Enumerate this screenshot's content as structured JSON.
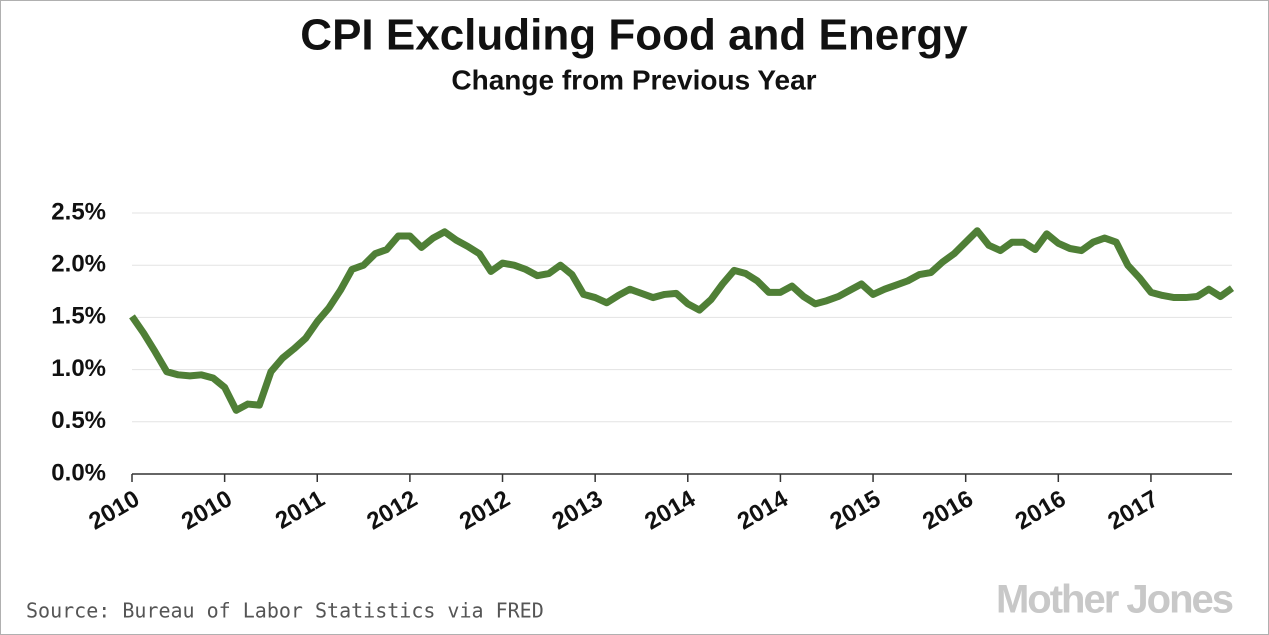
{
  "chart_data": {
    "type": "line",
    "title": "CPI Excluding Food and Energy",
    "subtitle": "Change from Previous Year",
    "source": "Source: Bureau of Labor Statistics via FRED",
    "credit": "Mother Jones",
    "categories": [
      "2010",
      null,
      null,
      null,
      null,
      null,
      null,
      null,
      "2010",
      null,
      null,
      null,
      null,
      null,
      null,
      null,
      "2011",
      null,
      null,
      null,
      null,
      null,
      null,
      null,
      "2012",
      null,
      null,
      null,
      null,
      null,
      null,
      null,
      "2012",
      null,
      null,
      null,
      null,
      null,
      null,
      null,
      "2013",
      null,
      null,
      null,
      null,
      null,
      null,
      null,
      "2014",
      null,
      null,
      null,
      null,
      null,
      null,
      null,
      "2014",
      null,
      null,
      null,
      null,
      null,
      null,
      null,
      "2015",
      null,
      null,
      null,
      null,
      null,
      null,
      null,
      "2016",
      null,
      null,
      null,
      null,
      null,
      null,
      null,
      "2016",
      null,
      null,
      null,
      null,
      null,
      null,
      null,
      "2017",
      null,
      null,
      null,
      null,
      null,
      null,
      null
    ],
    "values": [
      1.51,
      1.35,
      1.17,
      0.98,
      0.95,
      0.94,
      0.95,
      0.92,
      0.83,
      0.61,
      0.67,
      0.66,
      0.98,
      1.11,
      1.2,
      1.3,
      1.46,
      1.59,
      1.76,
      1.96,
      2.0,
      2.11,
      2.15,
      2.28,
      2.28,
      2.17,
      2.26,
      2.32,
      2.24,
      2.18,
      2.11,
      1.94,
      2.02,
      2.0,
      1.96,
      1.9,
      1.92,
      2.0,
      1.91,
      1.72,
      1.69,
      1.64,
      1.71,
      1.77,
      1.73,
      1.69,
      1.72,
      1.73,
      1.63,
      1.57,
      1.67,
      1.82,
      1.95,
      1.92,
      1.85,
      1.74,
      1.74,
      1.8,
      1.7,
      1.63,
      1.66,
      1.7,
      1.76,
      1.82,
      1.72,
      1.77,
      1.81,
      1.85,
      1.91,
      1.93,
      2.03,
      2.11,
      2.22,
      2.33,
      2.19,
      2.14,
      2.22,
      2.22,
      2.15,
      2.3,
      2.21,
      2.16,
      2.14,
      2.22,
      2.26,
      2.22,
      2.0,
      1.88,
      1.74,
      1.71,
      1.69,
      1.69,
      1.7,
      1.77,
      1.7,
      1.78
    ],
    "color": "#4f7f36",
    "ylim": [
      0,
      2.5
    ],
    "yticks": [
      {
        "value": 0,
        "label": "0.0%"
      },
      {
        "value": 0.5,
        "label": "0.5%"
      },
      {
        "value": 1,
        "label": "1.0%"
      },
      {
        "value": 1.5,
        "label": "1.5%"
      },
      {
        "value": 2,
        "label": "2.0%"
      },
      {
        "value": 2.5,
        "label": "2.5%"
      }
    ],
    "grid": true
  }
}
